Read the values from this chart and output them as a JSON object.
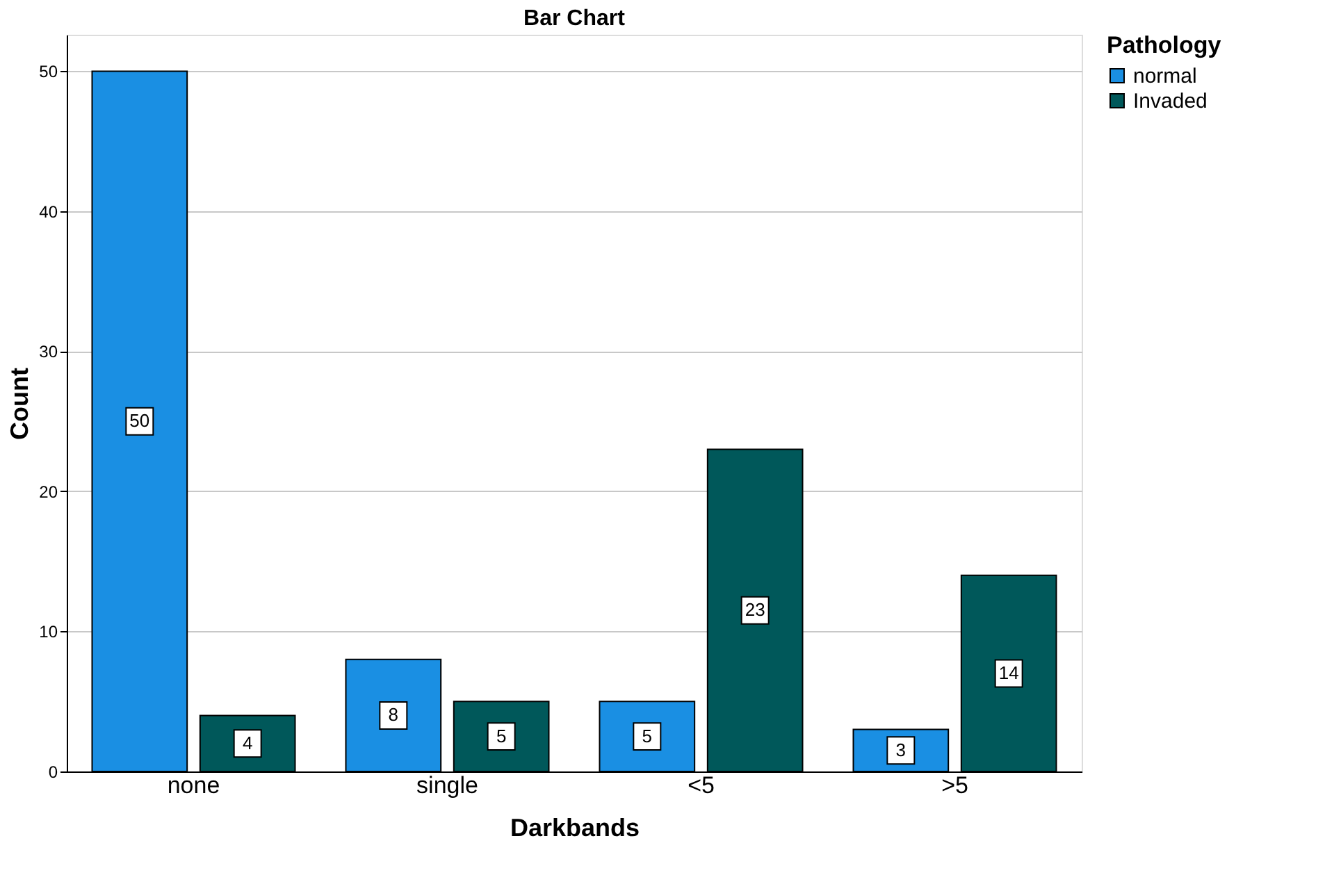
{
  "chart_data": {
    "type": "bar",
    "title": "Bar Chart",
    "xlabel": "Darkbands",
    "ylabel": "Count",
    "legend_title": "Pathology",
    "categories": [
      "none",
      "single",
      "<5",
      ">5"
    ],
    "series": [
      {
        "name": "normal",
        "color": "#1a8fe3",
        "values": [
          50,
          8,
          5,
          3
        ]
      },
      {
        "name": "Invaded",
        "color": "#00585a",
        "values": [
          4,
          5,
          23,
          14
        ]
      }
    ],
    "ylim": [
      0,
      52.6
    ],
    "yticks": [
      0,
      10,
      20,
      30,
      40,
      50
    ],
    "grid": "y",
    "legend": "top right",
    "data_labels": true
  }
}
